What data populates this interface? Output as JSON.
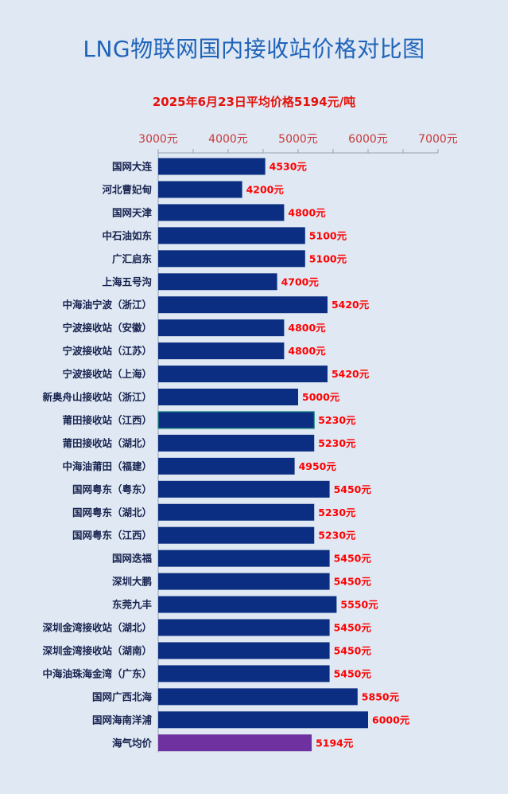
{
  "title": "LNG物联网国内接收站价格对比图",
  "subtitle": "2025年6月23日平均价格5194元/吨",
  "colors": {
    "bar": "#0b2e82",
    "highlight_bar": "#6f31a0",
    "highlight_outline": "#1c8a7e",
    "value_label": "#ff0000",
    "tick_label": "#c83b3b",
    "title": "#1f63b8",
    "background": "#dfe8f3"
  },
  "chart_data": {
    "type": "bar",
    "orientation": "horizontal",
    "title": "LNG物联网国内接收站价格对比图",
    "subtitle": "2025年6月23日平均价格5194元/吨",
    "xlim": [
      3000,
      7000
    ],
    "x_ticks": [
      3000,
      4000,
      5000,
      6000,
      7000
    ],
    "x_tick_labels": [
      "3000元",
      "4000元",
      "5000元",
      "6000元",
      "7000元"
    ],
    "x_axis_position": "top",
    "grid": false,
    "categories": [
      "国网大连",
      "河北曹妃甸",
      "国网天津",
      "中石油如东",
      "广汇启东",
      "上海五号沟",
      "中海油宁波（浙江）",
      "宁波接收站（安徽）",
      "宁波接收站（江苏）",
      "宁波接收站（上海）",
      "新奥舟山接收站（浙江）",
      "莆田接收站（江西）",
      "莆田接收站（湖北）",
      "中海油莆田（福建）",
      "国网粤东（粤东）",
      "国网粤东（湖北）",
      "国网粤东（江西）",
      "国网迭福",
      "深圳大鹏",
      "东莞九丰",
      "深圳金湾接收站（湖北）",
      "深圳金湾接收站（湖南）",
      "中海油珠海金湾（广东）",
      "国网广西北海",
      "国网海南洋浦",
      "海气均价"
    ],
    "values": [
      4530,
      4200,
      4800,
      5100,
      5100,
      4700,
      5420,
      4800,
      4800,
      5420,
      5000,
      5230,
      5230,
      4950,
      5450,
      5230,
      5230,
      5450,
      5450,
      5550,
      5450,
      5450,
      5450,
      5850,
      6000,
      5194
    ],
    "value_labels": [
      "4530元",
      "4200元",
      "4800元",
      "5100元",
      "5100元",
      "4700元",
      "5420元",
      "4800元",
      "4800元",
      "5420元",
      "5000元",
      "5230元",
      "5230元",
      "4950元",
      "5450元",
      "5230元",
      "5230元",
      "5450元",
      "5450元",
      "5550元",
      "5450元",
      "5450元",
      "5450元",
      "5850元",
      "6000元",
      "5194元"
    ],
    "highlight_index": 25,
    "outlined_index": 11
  }
}
